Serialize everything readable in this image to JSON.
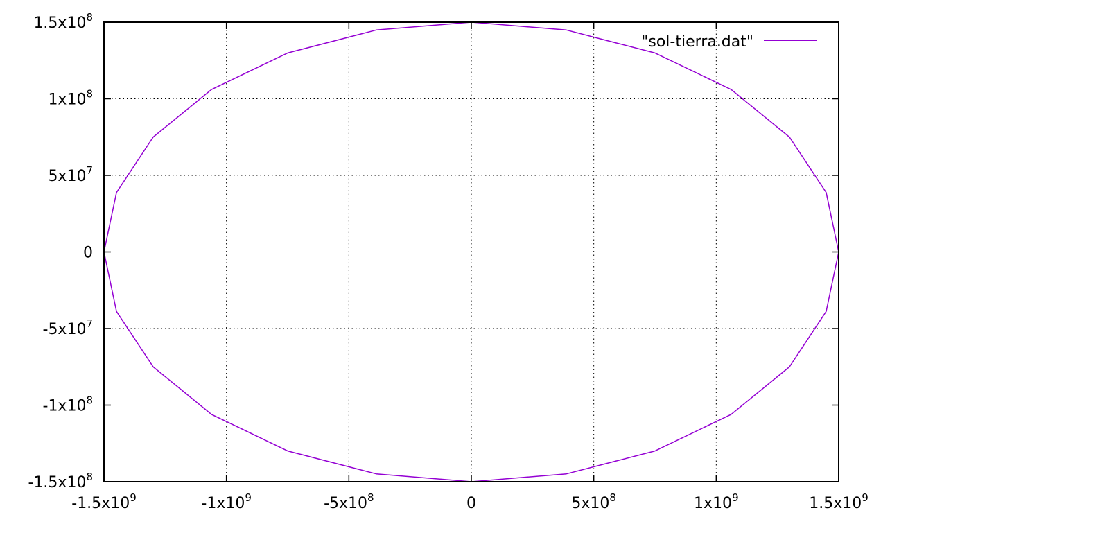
{
  "chart_data": {
    "type": "line",
    "title": "",
    "xlabel": "",
    "ylabel": "",
    "xlim": [
      -1500000000,
      1500000000
    ],
    "ylim": [
      -150000000,
      150000000
    ],
    "grid": true,
    "legend_position": "top-right",
    "x_ticks": [
      {
        "value": -1500000000,
        "mantissa": "-1.5x10",
        "exp": "9"
      },
      {
        "value": -1000000000,
        "mantissa": "-1x10",
        "exp": "9"
      },
      {
        "value": -500000000,
        "mantissa": "-5x10",
        "exp": "8"
      },
      {
        "value": 0,
        "mantissa": "0",
        "exp": ""
      },
      {
        "value": 500000000,
        "mantissa": "5x10",
        "exp": "8"
      },
      {
        "value": 1000000000,
        "mantissa": "1x10",
        "exp": "9"
      },
      {
        "value": 1500000000,
        "mantissa": "1.5x10",
        "exp": "9"
      }
    ],
    "y_ticks": [
      {
        "value": 150000000,
        "mantissa": "1.5x10",
        "exp": "8"
      },
      {
        "value": 100000000,
        "mantissa": "1x10",
        "exp": "8"
      },
      {
        "value": 50000000,
        "mantissa": "5x10",
        "exp": "7"
      },
      {
        "value": 0,
        "mantissa": "0",
        "exp": ""
      },
      {
        "value": -50000000,
        "mantissa": "-5x10",
        "exp": "7"
      },
      {
        "value": -100000000,
        "mantissa": "-1x10",
        "exp": "8"
      },
      {
        "value": -150000000,
        "mantissa": "-1.5x10",
        "exp": "8"
      }
    ],
    "series": [
      {
        "name": "\"sol-tierra.dat\"",
        "color": "#9400d3",
        "x": [
          1500000000,
          1448888000,
          1299038000,
          1060660000,
          750000000,
          388229000,
          0,
          -388229000,
          -750000000,
          -1060660000,
          -1299038000,
          -1448888000,
          -1500000000,
          -1448888000,
          -1299038000,
          -1060660000,
          -750000000,
          -388229000,
          0,
          388229000,
          750000000,
          1060660000,
          1299038000,
          1448888000,
          1500000000
        ],
        "y": [
          0,
          38823000,
          75000000,
          106066000,
          129904000,
          144889000,
          150000000,
          144889000,
          129904000,
          106066000,
          75000000,
          38823000,
          0,
          -38823000,
          -75000000,
          -106066000,
          -129904000,
          -144889000,
          -150000000,
          -144889000,
          -129904000,
          -106066000,
          -75000000,
          -38823000,
          0
        ]
      }
    ]
  }
}
